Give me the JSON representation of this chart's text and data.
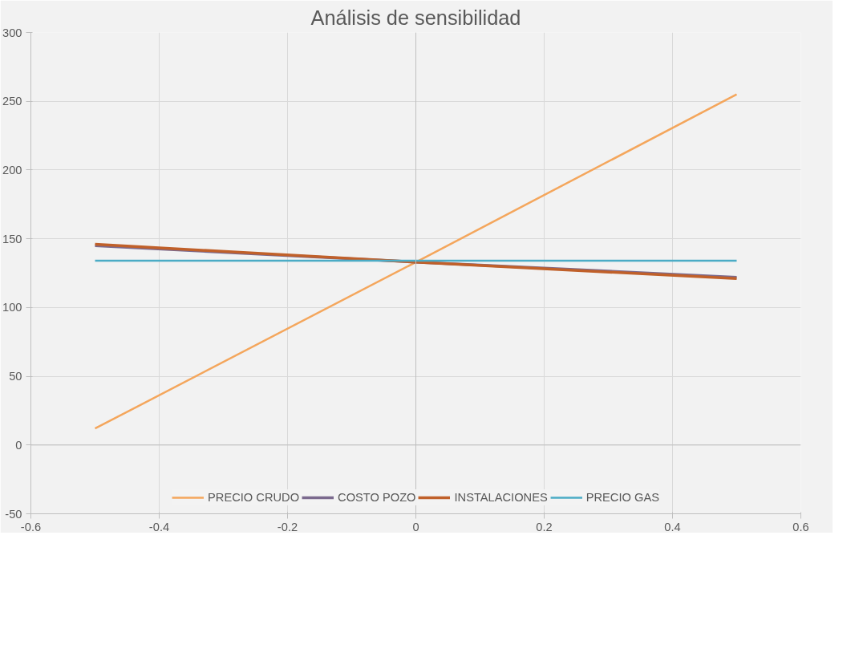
{
  "chart_data": {
    "type": "line",
    "title": "Análisis de sensibilidad",
    "x": [
      -0.5,
      0,
      0.5
    ],
    "series": [
      {
        "name": "PRECIO CRUDO",
        "color": "#f4a65c",
        "values": [
          12,
          133,
          255
        ]
      },
      {
        "name": "COSTO POZO",
        "color": "#7b6a8e",
        "values": [
          145,
          133,
          122
        ]
      },
      {
        "name": "INSTALACIONES",
        "color": "#c0602a",
        "values": [
          146,
          133,
          121
        ]
      },
      {
        "name": "PRECIO GAS",
        "color": "#4bacc6",
        "values": [
          134,
          134,
          134
        ]
      }
    ],
    "xlim": [
      -0.6,
      0.6
    ],
    "xticks": [
      -0.6,
      -0.4,
      -0.2,
      0,
      0.2,
      0.4,
      0.6
    ],
    "ylim": [
      -50,
      300
    ],
    "yticks": [
      -50,
      0,
      50,
      100,
      150,
      200,
      250,
      300
    ],
    "grid": true,
    "legend": "bottom",
    "marker": "none",
    "line_style": "solid"
  }
}
